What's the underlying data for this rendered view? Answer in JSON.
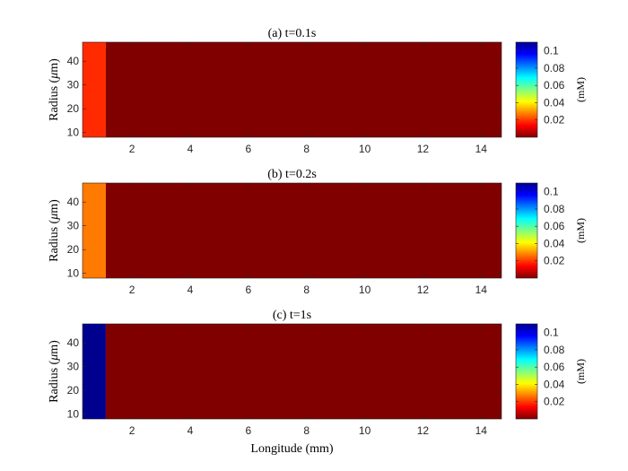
{
  "figure": {
    "xlabel_text": "Longitude (mm)",
    "ylabel_prefix": "Radius (",
    "ylabel_mu": "μ",
    "ylabel_suffix": "m)",
    "colorbar_label": "(mM)"
  },
  "chart_data": [
    {
      "type": "heatmap",
      "title": "(a) t=0.1s",
      "xlabel": "",
      "ylabel": "Radius (μm)",
      "xlim": [
        0.3,
        14.7
      ],
      "ylim": [
        8,
        48
      ],
      "xticks": [
        2,
        4,
        6,
        8,
        10,
        12,
        14
      ],
      "yticks": [
        10,
        20,
        30,
        40
      ],
      "clim": [
        0,
        0.11
      ],
      "colormap": "jet",
      "colorbar": {
        "label": "(mM)",
        "ticks": [
          0.02,
          0.04,
          0.06,
          0.08,
          0.1
        ]
      },
      "regions": [
        {
          "x_range": [
            0.3,
            1.1
          ],
          "y_range": [
            8,
            48
          ],
          "color": "#ff2a00"
        },
        {
          "x_range": [
            1.1,
            14.7
          ],
          "y_range": [
            8,
            48
          ],
          "color": "#800000"
        }
      ]
    },
    {
      "type": "heatmap",
      "title": "(b) t=0.2s",
      "xlabel": "",
      "ylabel": "Radius (μm)",
      "xlim": [
        0.3,
        14.7
      ],
      "ylim": [
        8,
        48
      ],
      "xticks": [
        2,
        4,
        6,
        8,
        10,
        12,
        14
      ],
      "yticks": [
        10,
        20,
        30,
        40
      ],
      "clim": [
        0,
        0.11
      ],
      "colormap": "jet",
      "colorbar": {
        "label": "(mM)",
        "ticks": [
          0.02,
          0.04,
          0.06,
          0.08,
          0.1
        ]
      },
      "regions": [
        {
          "x_range": [
            0.3,
            1.1
          ],
          "y_range": [
            8,
            48
          ],
          "color": "#ff7a00"
        },
        {
          "x_range": [
            1.1,
            14.7
          ],
          "y_range": [
            8,
            48
          ],
          "color": "#800000"
        }
      ]
    },
    {
      "type": "heatmap",
      "title": "(c) t=1s",
      "xlabel": "Longitude (mm)",
      "ylabel": "Radius (μm)",
      "xlim": [
        0.3,
        14.7
      ],
      "ylim": [
        8,
        48
      ],
      "xticks": [
        2,
        4,
        6,
        8,
        10,
        12,
        14
      ],
      "yticks": [
        10,
        20,
        30,
        40
      ],
      "clim": [
        0,
        0.11
      ],
      "colormap": "jet",
      "colorbar": {
        "label": "(mM)",
        "ticks": [
          0.02,
          0.04,
          0.06,
          0.08,
          0.1
        ]
      },
      "regions": [
        {
          "x_range": [
            0.3,
            1.1
          ],
          "y_range": [
            8,
            48
          ],
          "color": "#00008f"
        },
        {
          "x_range": [
            1.1,
            14.7
          ],
          "y_range": [
            8,
            48
          ],
          "color": "#800000"
        }
      ]
    }
  ]
}
